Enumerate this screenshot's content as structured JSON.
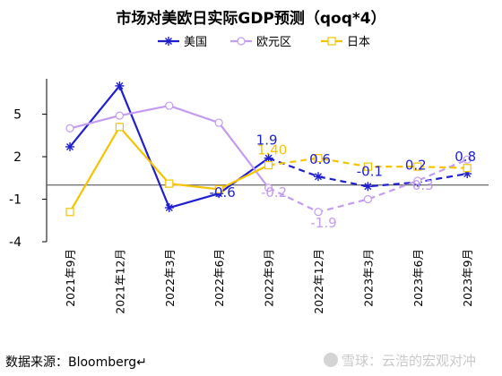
{
  "chart_data": {
    "type": "line",
    "title": "市场对美欧日实际GDP预测（qoq*4）",
    "categories": [
      "2021年9月",
      "2021年12月",
      "2022年3月",
      "2022年6月",
      "2022年9月",
      "2022年12月",
      "2023年3月",
      "2023年6月",
      "2023年9月"
    ],
    "yticks": [
      5,
      2,
      -1,
      -4
    ],
    "ylim": [
      -4,
      7.5
    ],
    "grid": false,
    "legend_position": "top",
    "series": [
      {
        "name": "美国",
        "color": "#1f1fd1",
        "marker": "asterisk",
        "values": [
          2.7,
          7.0,
          -1.6,
          -0.6,
          1.9,
          0.6,
          -0.1,
          0.2,
          0.8
        ],
        "forecast_from_index": 4,
        "data_labels": [
          "",
          "",
          "",
          "-0.6",
          "1.9",
          "0.6",
          "-0.1",
          "0.2",
          "0.8"
        ]
      },
      {
        "name": "欧元区",
        "color": "#c39bf0",
        "marker": "circle",
        "values": [
          4.0,
          4.9,
          5.6,
          4.4,
          -0.2,
          -1.9,
          -1.0,
          0.3,
          1.8
        ],
        "forecast_from_index": 4,
        "data_labels": [
          "",
          "",
          "",
          "",
          "-0.2",
          "-1.9",
          "",
          "0.3",
          ""
        ]
      },
      {
        "name": "日本",
        "color": "#f5c400",
        "marker": "square",
        "values": [
          -1.9,
          4.1,
          0.1,
          -0.3,
          1.4,
          1.9,
          1.3,
          1.3,
          1.2
        ],
        "forecast_from_index": 4,
        "data_labels": [
          "",
          "",
          "",
          "",
          "1.40",
          "",
          "",
          "",
          ""
        ]
      }
    ]
  },
  "source": "数据来源：Bloomberg↵",
  "watermark": "雪球：云浩的宏观对冲",
  "watermark_icon": "snowball-logo-icon"
}
